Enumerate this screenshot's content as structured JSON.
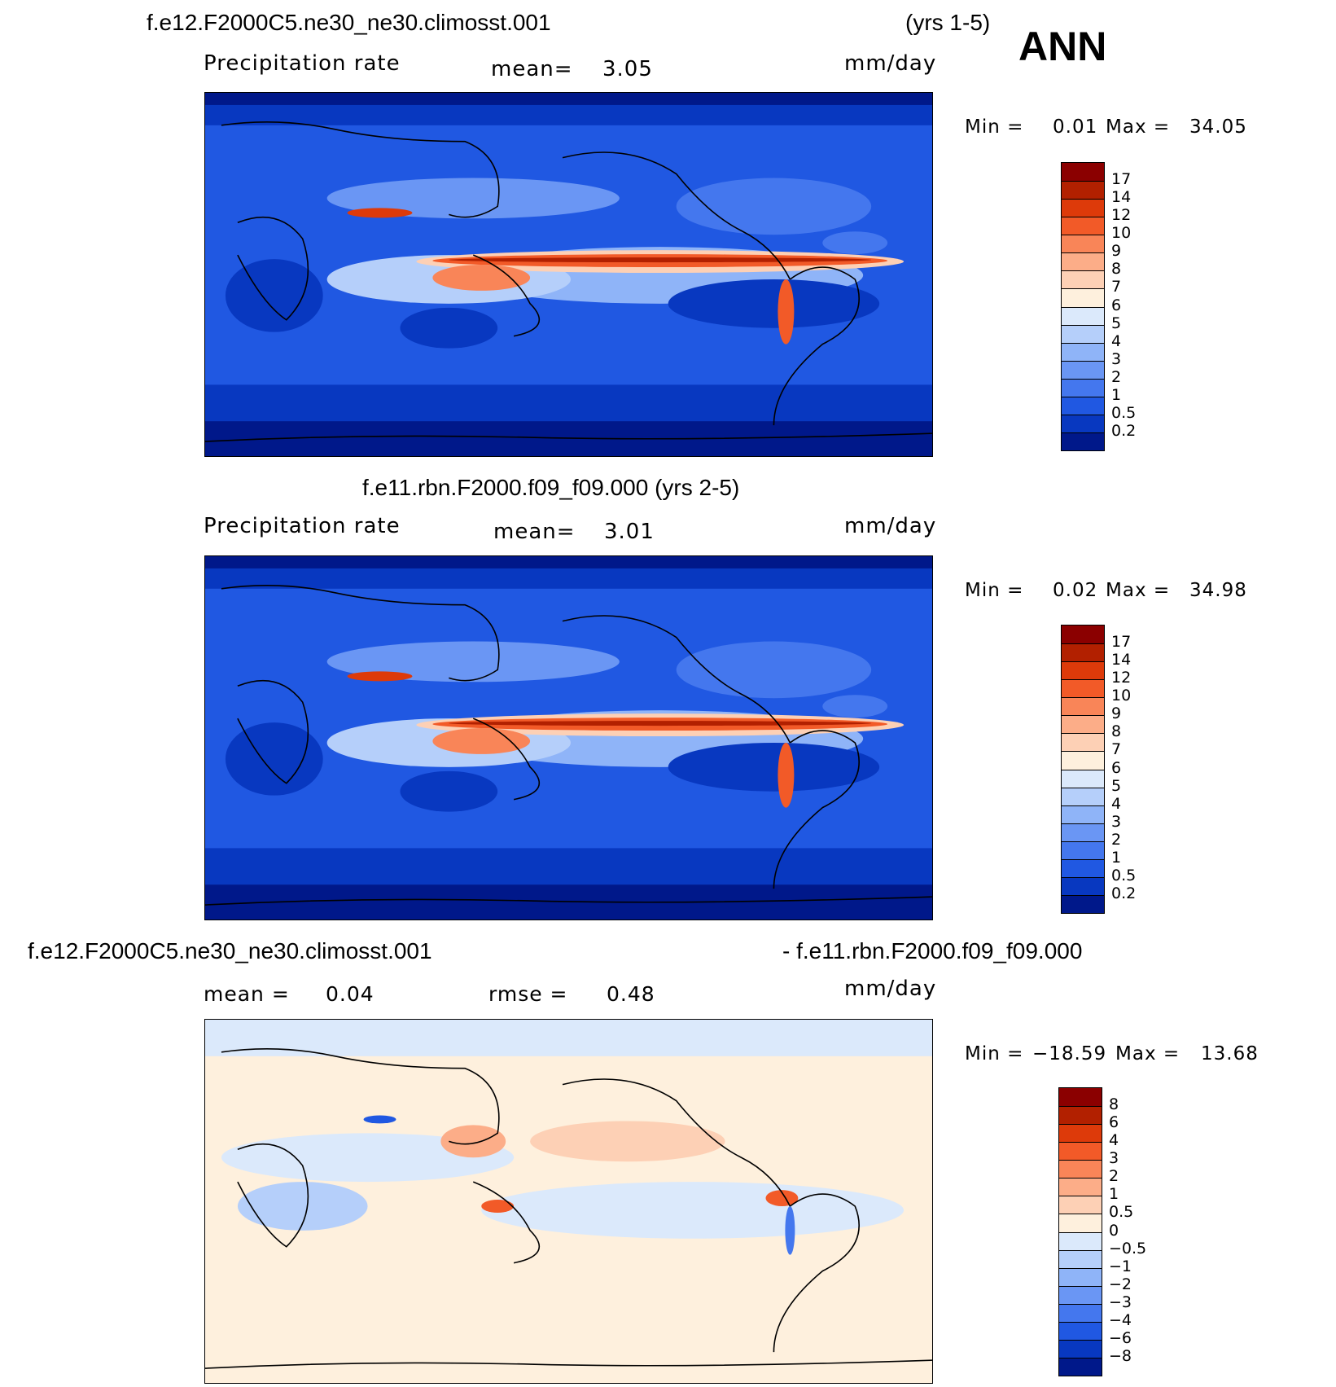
{
  "header": {
    "case1": "f.e12.F2000C5.ne30_ne30.climosst.001",
    "years1": "(yrs 1-5)",
    "season": "ANN"
  },
  "panels": [
    {
      "id": "p1",
      "field": "Precipitation rate",
      "mean_label": "mean=",
      "mean_value": "3.05",
      "units": "mm/day",
      "min_label": "Min =",
      "min_value": "0.01",
      "max_label": "Max =",
      "max_value": "34.05"
    },
    {
      "id": "p2",
      "title": "f.e11.rbn.F2000.f09_f09.000 (yrs 2-5)",
      "field": "Precipitation rate",
      "mean_label": "mean=",
      "mean_value": "3.01",
      "units": "mm/day",
      "min_label": "Min =",
      "min_value": "0.02",
      "max_label": "Max =",
      "max_value": "34.98"
    },
    {
      "id": "p3",
      "title_left": "f.e12.F2000C5.ne30_ne30.climosst.001",
      "title_right": "- f.e11.rbn.F2000.f09_f09.000",
      "mean_label": "mean =",
      "mean_value": "0.04",
      "rmse_label": "rmse =",
      "rmse_value": "0.48",
      "units": "mm/day",
      "min_label": "Min =",
      "min_value": "−18.59",
      "max_label": "Max =",
      "max_value": "13.68"
    }
  ],
  "colorbars": {
    "precip": {
      "labels": [
        "17",
        "14",
        "12",
        "10",
        "9",
        "8",
        "7",
        "6",
        "5",
        "4",
        "3",
        "2",
        "1",
        "0.5",
        "0.2"
      ],
      "colors": [
        "#8b0000",
        "#b22000",
        "#dd3a0a",
        "#f25a28",
        "#f98558",
        "#fcad88",
        "#fdd0b5",
        "#fef0dd",
        "#dbe9fb",
        "#b5cffa",
        "#8fb4f8",
        "#6a96f4",
        "#4477ee",
        "#2058e2",
        "#0838c0",
        "#00188a"
      ]
    },
    "diff": {
      "labels": [
        "8",
        "6",
        "4",
        "3",
        "2",
        "1",
        "0.5",
        "0",
        "−0.5",
        "−1",
        "−2",
        "−3",
        "−4",
        "−6",
        "−8"
      ],
      "colors": [
        "#8b0000",
        "#b22000",
        "#dd3a0a",
        "#f25a28",
        "#f98558",
        "#fcad88",
        "#fdd0b5",
        "#fef0dd",
        "#dbe9fb",
        "#b5cffa",
        "#8fb4f8",
        "#6a96f4",
        "#4477ee",
        "#2058e2",
        "#0838c0",
        "#00188a"
      ]
    }
  }
}
